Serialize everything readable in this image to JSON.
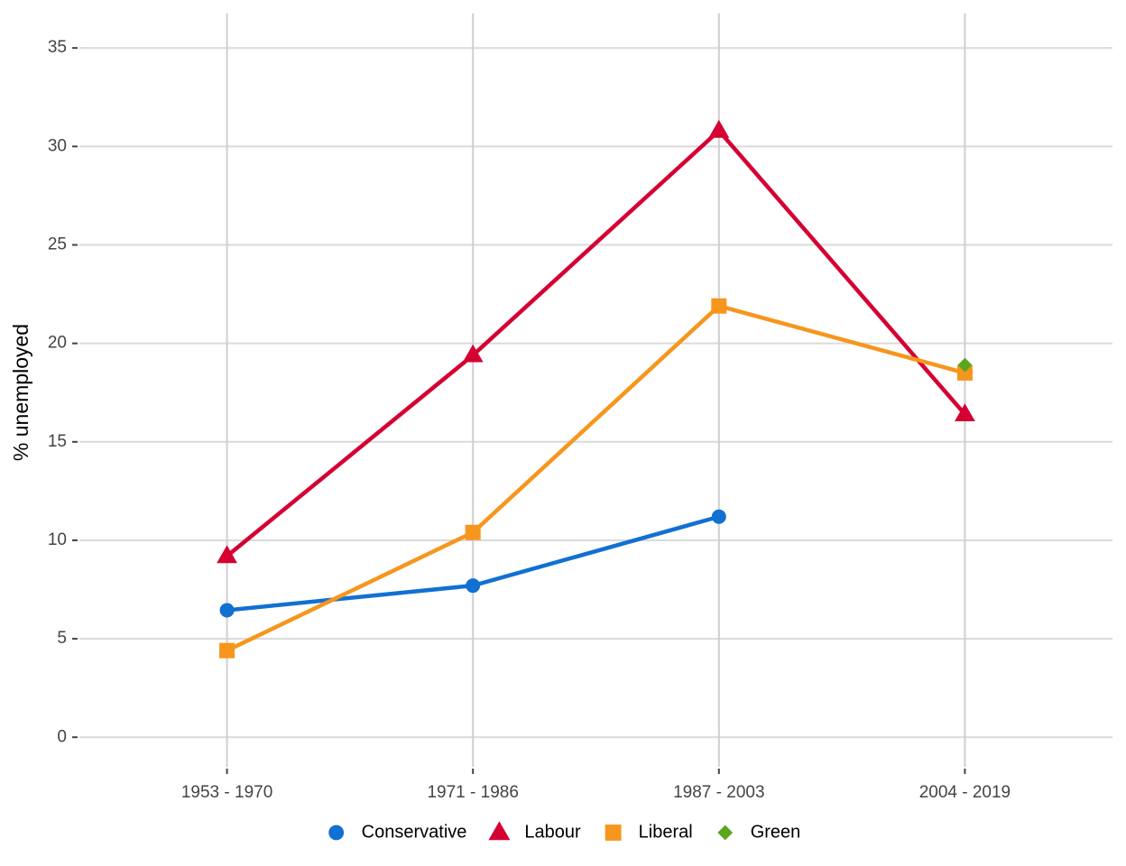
{
  "chart_data": {
    "type": "line",
    "y_label": "% unemployed",
    "categories": [
      "1953 - 1970",
      "1971 - 1986",
      "1987 - 2003",
      "2004 - 2019"
    ],
    "series": [
      {
        "name": "Conservative",
        "color": "#1170d2",
        "marker": "circle",
        "values": [
          6.45,
          7.7,
          11.2,
          null
        ]
      },
      {
        "name": "Labour",
        "color": "#d50032",
        "marker": "triangle",
        "values": [
          9.2,
          19.4,
          30.8,
          16.4
        ]
      },
      {
        "name": "Liberal",
        "color": "#f6961d",
        "marker": "square",
        "values": [
          4.4,
          10.4,
          21.9,
          18.5
        ]
      },
      {
        "name": "Green",
        "color": "#5aa61e",
        "marker": "diamond",
        "values": [
          null,
          null,
          null,
          18.9
        ]
      }
    ],
    "ylim": [
      -1.5,
      36.75
    ],
    "yticks": [
      0,
      5,
      10,
      15,
      20,
      25,
      30,
      35
    ],
    "grid": true,
    "legend": "bottom"
  }
}
